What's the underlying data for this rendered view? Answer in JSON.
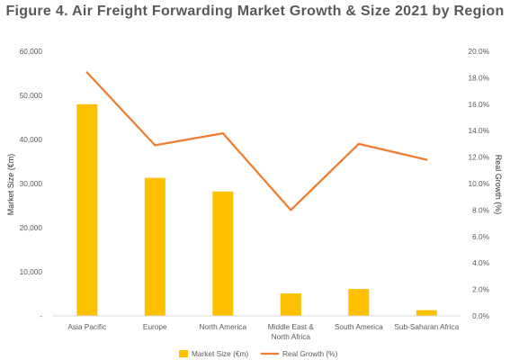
{
  "chart_data": {
    "type": "bar",
    "title": "Figure 4. Air Freight Forwarding Market Growth & Size 2021 by Region",
    "categories": [
      "Asia Pacific",
      "Europe",
      "North America",
      "Middle East & North Africa",
      "South America",
      "Sub-Saharan Africa"
    ],
    "series": [
      {
        "name": "Market Size (€m)",
        "type": "bar",
        "axis": "left",
        "color": "#FFC000",
        "values": [
          48000,
          31300,
          28200,
          5100,
          6100,
          1300
        ]
      },
      {
        "name": "Real Growth (%)",
        "type": "line",
        "axis": "right",
        "color": "#ED7D31",
        "values": [
          18.4,
          12.9,
          13.8,
          8.0,
          13.0,
          11.8
        ]
      }
    ],
    "xlabel": "",
    "ylabel": "Market Size (€m)",
    "ylabel_right": "Real Growth (%)",
    "ylim": [
      0,
      60000
    ],
    "ylim_right": [
      0,
      20
    ],
    "yticks": [
      "-",
      "10,000",
      "20,000",
      "30,000",
      "40,000",
      "50,000",
      "60,000"
    ],
    "yticks_right": [
      "0.0%",
      "2.0%",
      "4.0%",
      "6.0%",
      "8.0%",
      "10.0%",
      "12.0%",
      "14.0%",
      "16.0%",
      "18.0%",
      "20.0%"
    ],
    "grid": false,
    "legend": "bottom",
    "colors": {
      "title": "#595959",
      "tick_text": "#595959",
      "axis_line": "#D9D9D9"
    }
  }
}
